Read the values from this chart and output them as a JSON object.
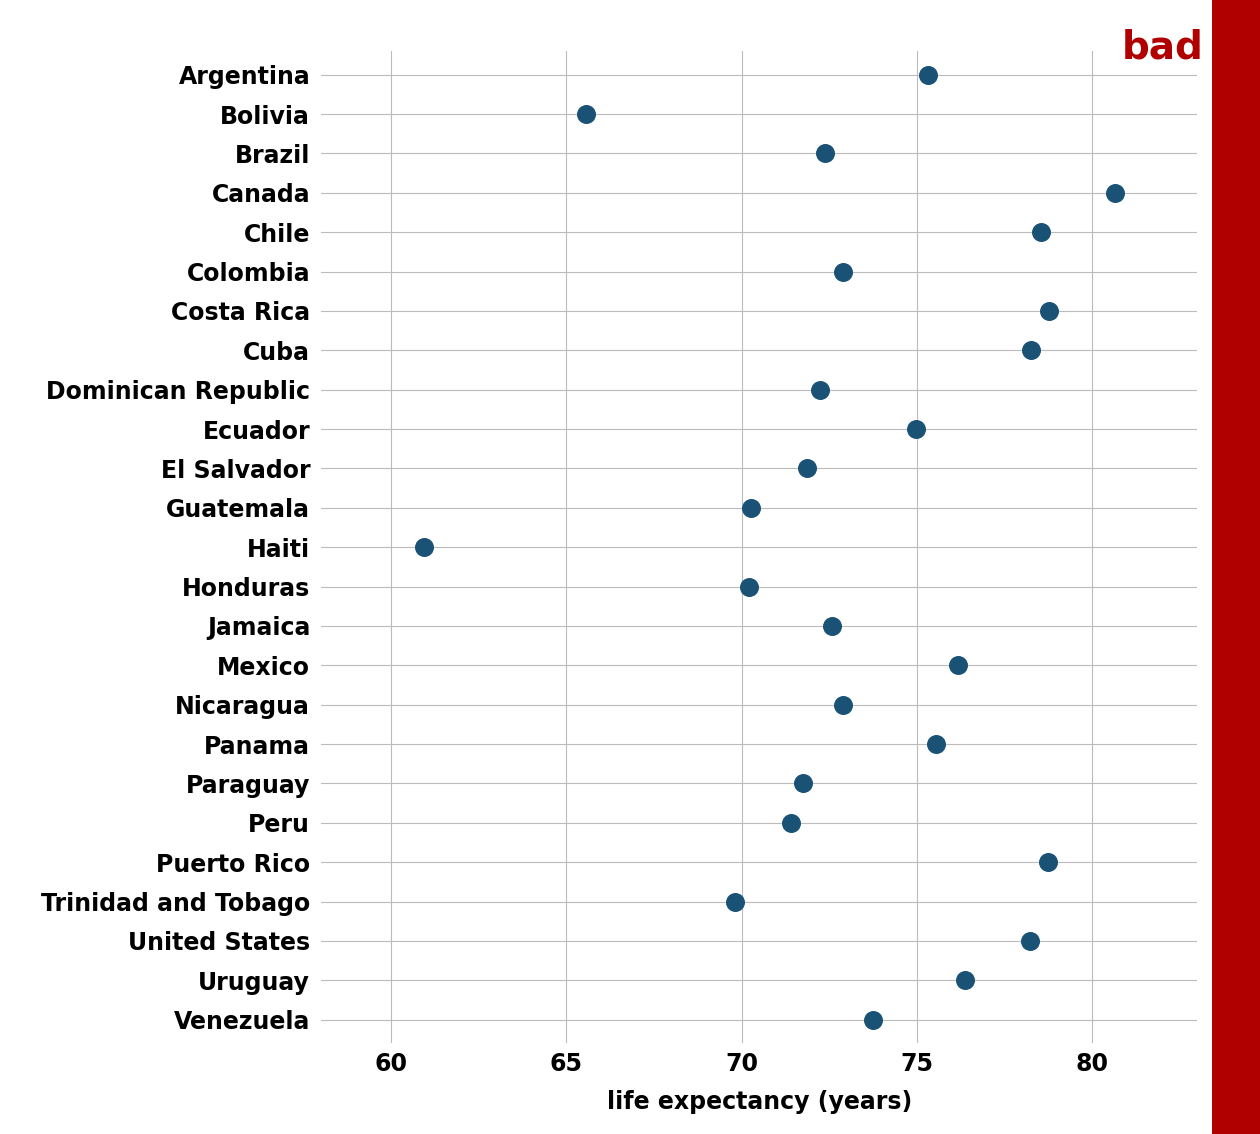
{
  "countries": [
    "Argentina",
    "Bolivia",
    "Brazil",
    "Canada",
    "Chile",
    "Colombia",
    "Costa Rica",
    "Cuba",
    "Dominican Republic",
    "Ecuador",
    "El Salvador",
    "Guatemala",
    "Haiti",
    "Honduras",
    "Jamaica",
    "Mexico",
    "Nicaragua",
    "Panama",
    "Paraguay",
    "Peru",
    "Puerto Rico",
    "Trinidad and Tobago",
    "United States",
    "Uruguay",
    "Venezuela"
  ],
  "life_expectancy": [
    75.32,
    65.55,
    72.39,
    80.65,
    78.55,
    72.89,
    78.78,
    78.27,
    72.24,
    74.99,
    71.88,
    70.26,
    60.92,
    70.2,
    72.57,
    76.19,
    72.9,
    75.54,
    71.75,
    71.42,
    78.75,
    69.82,
    78.24,
    76.38,
    73.75
  ],
  "dot_color": "#1a5276",
  "dot_size": 160,
  "xlabel": "life expectancy (years)",
  "xlim": [
    58,
    83
  ],
  "xticks": [
    60,
    65,
    70,
    75,
    80
  ],
  "bad_label": "bad",
  "bad_color": "#b00000",
  "grid_color": "#bbbbbb",
  "bg_color": "#ffffff",
  "right_bar_color": "#b00000",
  "label_fontsize": 17,
  "xlabel_fontsize": 17,
  "xtick_fontsize": 17,
  "bad_fontsize": 28
}
